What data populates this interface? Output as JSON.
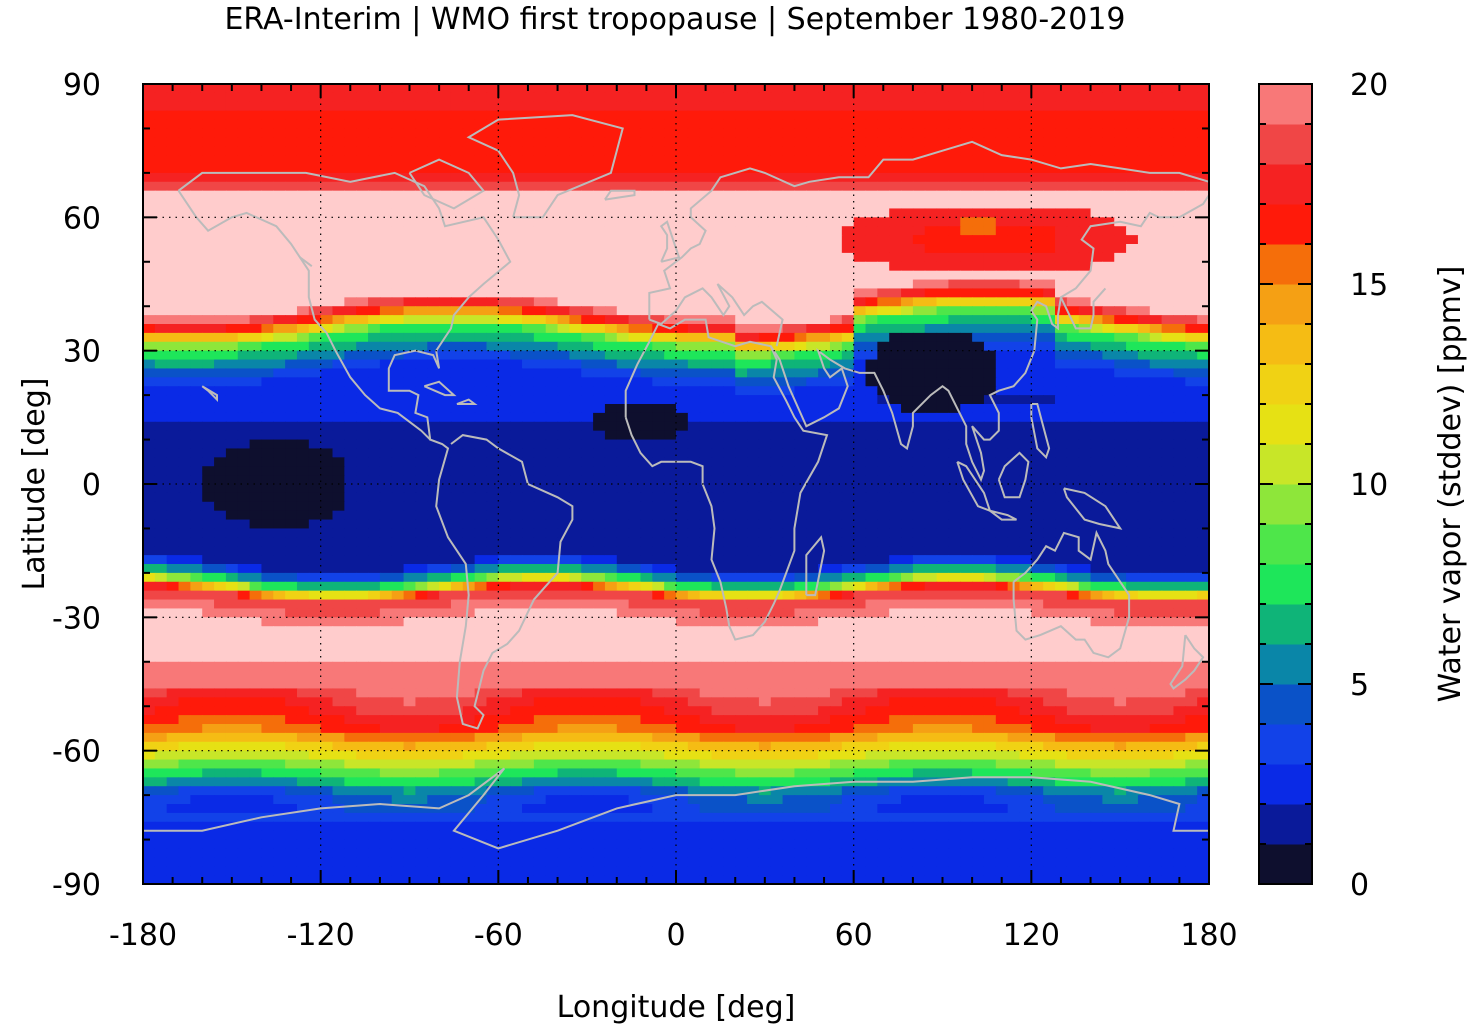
{
  "title": "ERA-Interim | WMO first tropopause | September 1980-2019",
  "chart_data": {
    "type": "heatmap",
    "title": "ERA-Interim | WMO first tropopause | September 1980-2019",
    "xlabel": "Longitude [deg]",
    "ylabel": "Latitude [deg]",
    "colorbar_label": "Water vapor (stddev) [ppmv]",
    "xlim": [
      -180,
      180
    ],
    "ylim": [
      -90,
      90
    ],
    "x_ticks": [
      "-180",
      "-120",
      "-60",
      "0",
      "60",
      "120",
      "180"
    ],
    "y_ticks": [
      "90",
      "60",
      "30",
      "0",
      "-30",
      "-60",
      "-90"
    ],
    "colorbar_ticks": [
      "20",
      "15",
      "10",
      "5",
      "0"
    ],
    "colorbar_range": [
      0,
      20
    ],
    "colorbar_levels": 20,
    "grid": "dotted",
    "coastlines_color": "#bbbbbb",
    "colormap": [
      "#0e0f2e",
      "#0a1a9a",
      "#0a2ae6",
      "#1242e8",
      "#0a52c8",
      "#0a86a8",
      "#0fb478",
      "#1ee65a",
      "#4ee64a",
      "#8ee63a",
      "#c8e628",
      "#e6e114",
      "#f0d214",
      "#f5bc14",
      "#f5a014",
      "#f56e0a",
      "#ff1a0a",
      "#f52222",
      "#f04646",
      "#f87878",
      "#ffcccc"
    ],
    "zonal_profile_ppmv": [
      {
        "lat": -90,
        "value": 2
      },
      {
        "lat": -80,
        "value": 2.5
      },
      {
        "lat": -70,
        "value": 4
      },
      {
        "lat": -65,
        "value": 8
      },
      {
        "lat": -60,
        "value": 12
      },
      {
        "lat": -55,
        "value": 16
      },
      {
        "lat": -50,
        "value": 17.5
      },
      {
        "lat": -45,
        "value": 19
      },
      {
        "lat": -40,
        "value": 20
      },
      {
        "lat": -30,
        "value": 20
      },
      {
        "lat": -25,
        "value": 18
      },
      {
        "lat": -22,
        "value": 8
      },
      {
        "lat": -18,
        "value": 2
      },
      {
        "lat": 0,
        "value": 1.5
      },
      {
        "lat": 15,
        "value": 2
      },
      {
        "lat": 25,
        "value": 3
      },
      {
        "lat": 33,
        "value": 8
      },
      {
        "lat": 37,
        "value": 16
      },
      {
        "lat": 40,
        "value": 20
      },
      {
        "lat": 65,
        "value": 20
      },
      {
        "lat": 70,
        "value": 17
      },
      {
        "lat": 80,
        "value": 16
      },
      {
        "lat": 90,
        "value": 18
      }
    ],
    "features": [
      {
        "label": "central Pacific minimum",
        "lon_range": [
          -160,
          -110
        ],
        "lat_range": [
          -10,
          10
        ],
        "value": 0.5
      },
      {
        "label": "equatorial Atlantic minimum",
        "lon_range": [
          -30,
          5
        ],
        "lat_range": [
          10,
          18
        ],
        "value": 0.5
      },
      {
        "label": "Asian monsoon minimum",
        "lon_range": [
          65,
          110
        ],
        "lat_range": [
          16,
          35
        ],
        "value": 0.5
      },
      {
        "label": "Siberian maximum",
        "lon_range": [
          95,
          110
        ],
        "lat_range": [
          55,
          60
        ],
        "value": 15
      }
    ]
  }
}
